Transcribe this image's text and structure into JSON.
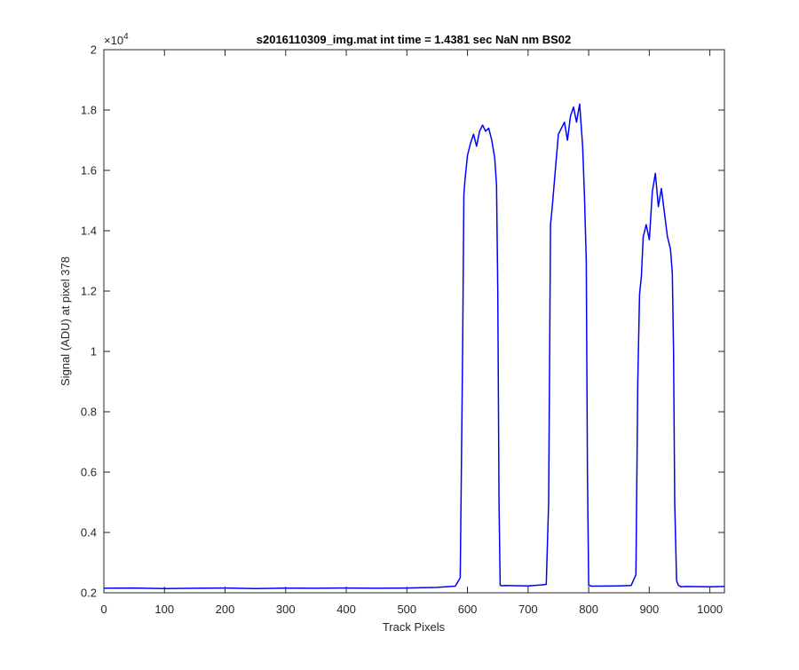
{
  "chart_data": {
    "type": "line",
    "title": "s2016110309_img.mat int time = 1.4381 sec  NaN nm BS02",
    "xlabel": "Track Pixels",
    "ylabel": "Signal (ADU) at pixel 378",
    "xlim": [
      0,
      1024
    ],
    "ylim": [
      2000,
      20000
    ],
    "y_exponent_label": "×10",
    "y_exponent_power": "4",
    "xticks": [
      0,
      100,
      200,
      300,
      400,
      500,
      600,
      700,
      800,
      900,
      1000
    ],
    "xtick_labels": [
      "0",
      "100",
      "200",
      "300",
      "400",
      "500",
      "600",
      "700",
      "800",
      "900",
      "1000"
    ],
    "yticks": [
      2000,
      4000,
      6000,
      8000,
      10000,
      12000,
      14000,
      16000,
      18000,
      20000
    ],
    "ytick_labels": [
      "0.2",
      "0.4",
      "0.6",
      "0.8",
      "1",
      "1.2",
      "1.4",
      "1.6",
      "1.8",
      "2"
    ],
    "grid": false,
    "line_color": "#0000ff",
    "series": [
      {
        "x": [
          0,
          50,
          100,
          150,
          200,
          250,
          300,
          350,
          400,
          450,
          500,
          550,
          580,
          588,
          592,
          594,
          596,
          600,
          605,
          610,
          615,
          620,
          625,
          630,
          635,
          640,
          645,
          648,
          650,
          652,
          654,
          657,
          660,
          700,
          720,
          730,
          734,
          737,
          740,
          745,
          750,
          755,
          760,
          765,
          770,
          775,
          780,
          785,
          790,
          793,
          796,
          798,
          800,
          805,
          850,
          870,
          878,
          881,
          884,
          887,
          890,
          895,
          900,
          905,
          910,
          915,
          920,
          925,
          930,
          935,
          938,
          940,
          942,
          945,
          948,
          952,
          960,
          1000,
          1024
        ],
        "y": [
          2150,
          2160,
          2140,
          2150,
          2160,
          2140,
          2155,
          2150,
          2160,
          2150,
          2160,
          2180,
          2220,
          2500,
          10000,
          15200,
          15700,
          16500,
          16900,
          17200,
          16800,
          17300,
          17500,
          17300,
          17400,
          17000,
          16400,
          15500,
          12000,
          5000,
          2250,
          2230,
          2240,
          2230,
          2260,
          2280,
          5000,
          14200,
          14800,
          16000,
          17200,
          17400,
          17600,
          17000,
          17800,
          18100,
          17600,
          18200,
          16800,
          15200,
          13000,
          6000,
          2250,
          2220,
          2230,
          2240,
          2600,
          9000,
          11900,
          12500,
          13800,
          14200,
          13700,
          15300,
          15900,
          14800,
          15400,
          14600,
          13800,
          13400,
          12600,
          10000,
          5000,
          2400,
          2250,
          2200,
          2210,
          2200,
          2210
        ]
      }
    ]
  }
}
